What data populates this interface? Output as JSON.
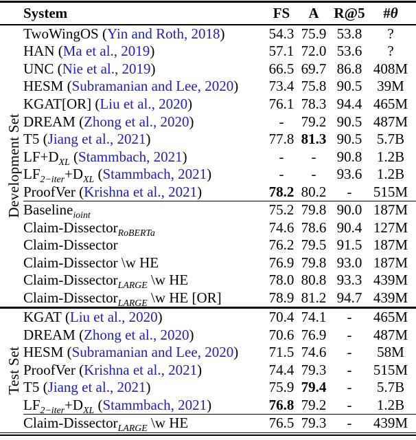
{
  "colors": {
    "citation": "#2222aa",
    "text": "#000000",
    "rule": "#000000",
    "background": "#ffffff"
  },
  "table": {
    "header": {
      "system": "System",
      "fs": "FS",
      "accuracy": "A",
      "recall_at_5": "R@5",
      "params_hash": "#",
      "params_theta": "θ"
    },
    "sections": [
      {
        "label": "Development Set",
        "groups": [
          {
            "rows": [
              {
                "parts": [
                  {
                    "t": "TwoWingOS"
                  }
                ],
                "cite": "Yin and Roth, 2018",
                "vals": [
                  "54.3",
                  "75.9",
                  "53.8",
                  "?"
                ],
                "bold": []
              },
              {
                "parts": [
                  {
                    "t": "HAN"
                  }
                ],
                "cite": "Ma et al., 2019",
                "vals": [
                  "57.1",
                  "72.0",
                  "53.6",
                  "?"
                ],
                "bold": []
              },
              {
                "parts": [
                  {
                    "t": "UNC"
                  }
                ],
                "cite": "Nie et al., 2019",
                "vals": [
                  "66.5",
                  "69.7",
                  "86.8",
                  "408M"
                ],
                "bold": []
              },
              {
                "parts": [
                  {
                    "t": "HESM"
                  }
                ],
                "cite": "Subramanian and Lee, 2020",
                "vals": [
                  "73.4",
                  "75.8",
                  "90.5",
                  "39M"
                ],
                "bold": []
              },
              {
                "parts": [
                  {
                    "t": "KGAT[OR]"
                  }
                ],
                "cite": "Liu et al., 2020",
                "vals": [
                  "76.1",
                  "78.3",
                  "94.4",
                  "465M"
                ],
                "bold": []
              },
              {
                "parts": [
                  {
                    "t": "DREAM"
                  }
                ],
                "cite": "Zhong et al., 2020",
                "vals": [
                  "-",
                  "79.2",
                  "90.5",
                  "487M"
                ],
                "bold": []
              },
              {
                "parts": [
                  {
                    "t": "T5"
                  }
                ],
                "cite": "Jiang et al., 2021",
                "vals": [
                  "77.8",
                  "81.3",
                  "90.5",
                  "5.7B"
                ],
                "bold": [
                  1
                ]
              },
              {
                "parts": [
                  {
                    "t": "LF+D"
                  },
                  {
                    "t": "XL",
                    "sub": true
                  }
                ],
                "cite": "Stammbach, 2021",
                "vals": [
                  "-",
                  "-",
                  "90.8",
                  "1.2B"
                ],
                "bold": []
              },
              {
                "parts": [
                  {
                    "t": "LF"
                  },
                  {
                    "t": "2−iter",
                    "sub": true
                  },
                  {
                    "t": "+D"
                  },
                  {
                    "t": "XL",
                    "sub": true
                  }
                ],
                "cite": "Stammbach, 2021",
                "vals": [
                  "-",
                  "-",
                  "93.6",
                  "1.2B"
                ],
                "bold": []
              },
              {
                "parts": [
                  {
                    "t": "ProofVer"
                  }
                ],
                "cite": "Krishna et al., 2021",
                "vals": [
                  "78.2",
                  "80.2",
                  "-",
                  "515M"
                ],
                "bold": [
                  0
                ]
              }
            ]
          },
          {
            "rows": [
              {
                "parts": [
                  {
                    "t": "Baseline"
                  },
                  {
                    "t": "joint",
                    "sub": true
                  }
                ],
                "cite": null,
                "vals": [
                  "75.2",
                  "79.8",
                  "90.0",
                  "187M"
                ],
                "bold": []
              },
              {
                "parts": [
                  {
                    "t": "Claim-Dissector"
                  },
                  {
                    "t": "RoBERTa",
                    "sub": true
                  }
                ],
                "cite": null,
                "vals": [
                  "74.6",
                  "78.6",
                  "90.4",
                  "127M"
                ],
                "bold": []
              },
              {
                "parts": [
                  {
                    "t": "Claim-Dissector"
                  }
                ],
                "cite": null,
                "vals": [
                  "76.2",
                  "79.5",
                  "91.5",
                  "187M"
                ],
                "bold": []
              },
              {
                "parts": [
                  {
                    "t": "Claim-Dissector \\w HE"
                  }
                ],
                "cite": null,
                "vals": [
                  "76.9",
                  "79.8",
                  "93.0",
                  "187M"
                ],
                "bold": []
              },
              {
                "parts": [
                  {
                    "t": "Claim-Dissector"
                  },
                  {
                    "t": "LARGE",
                    "sub": true
                  },
                  {
                    "t": " \\w HE"
                  }
                ],
                "cite": null,
                "vals": [
                  "78.0",
                  "80.8",
                  "93.3",
                  "439M"
                ],
                "bold": []
              },
              {
                "parts": [
                  {
                    "t": "Claim-Dissector"
                  },
                  {
                    "t": "LARGE",
                    "sub": true
                  },
                  {
                    "t": " \\w HE [OR]"
                  }
                ],
                "cite": null,
                "vals": [
                  "78.9",
                  "81.2",
                  "94.7",
                  "439M"
                ],
                "bold": []
              }
            ]
          }
        ]
      },
      {
        "label": "Test Set",
        "groups": [
          {
            "rows": [
              {
                "parts": [
                  {
                    "t": "KGAT"
                  }
                ],
                "cite": "Liu et al., 2020",
                "vals": [
                  "70.4",
                  "74.1",
                  "-",
                  "465M"
                ],
                "bold": []
              },
              {
                "parts": [
                  {
                    "t": "DREAM"
                  }
                ],
                "cite": "Zhong et al., 2020",
                "vals": [
                  "70.6",
                  "76.9",
                  "-",
                  "487M"
                ],
                "bold": []
              },
              {
                "parts": [
                  {
                    "t": "HESM"
                  }
                ],
                "cite": "Subramanian and Lee, 2020",
                "vals": [
                  "71.5",
                  "74.6",
                  "-",
                  "58M"
                ],
                "bold": []
              },
              {
                "parts": [
                  {
                    "t": "ProofVer"
                  }
                ],
                "cite": "Krishna et al., 2021",
                "vals": [
                  "74.4",
                  "79.3",
                  "-",
                  "515M"
                ],
                "bold": []
              },
              {
                "parts": [
                  {
                    "t": "T5"
                  }
                ],
                "cite": "Jiang et al., 2021",
                "vals": [
                  "75.9",
                  "79.4",
                  "-",
                  "5.7B"
                ],
                "bold": [
                  1
                ]
              },
              {
                "parts": [
                  {
                    "t": "LF"
                  },
                  {
                    "t": "2−iter",
                    "sub": true
                  },
                  {
                    "t": "+D"
                  },
                  {
                    "t": "XL",
                    "sub": true
                  }
                ],
                "cite": "Stammbach, 2021",
                "vals": [
                  "76.8",
                  "79.2",
                  "-",
                  "1.2B"
                ],
                "bold": [
                  0
                ]
              }
            ]
          },
          {
            "rows": [
              {
                "parts": [
                  {
                    "t": "Claim-Dissector"
                  },
                  {
                    "t": "LARGE",
                    "sub": true
                  },
                  {
                    "t": " \\w HE"
                  }
                ],
                "cite": null,
                "vals": [
                  "76.5",
                  "79.3",
                  "-",
                  "439M"
                ],
                "bold": []
              }
            ]
          }
        ]
      }
    ]
  }
}
